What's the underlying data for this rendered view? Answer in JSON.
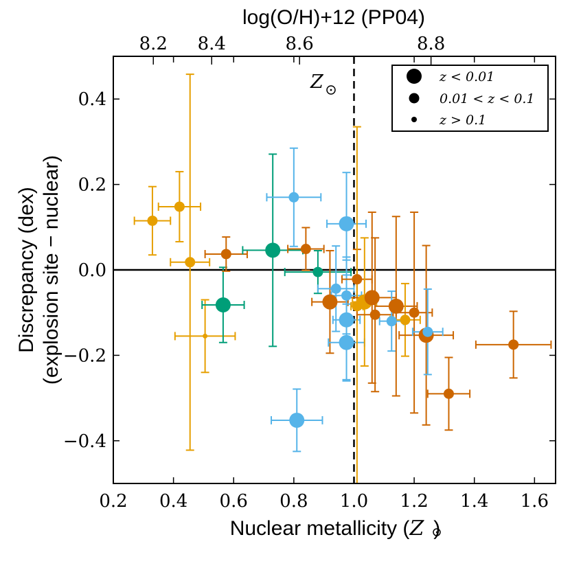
{
  "chart_data": {
    "type": "scatter",
    "title_top_axis": "log(O/H)+12 (PP04)",
    "xlabel_prefix": "Nuclear metallicity (",
    "xlabel_symbol": "Z",
    "xlabel_suffix": ")",
    "ylabel_line1": "Discrepancy (dex)",
    "ylabel_line2": "(explosion site − nuclear)",
    "xlim": [
      0.2,
      1.67
    ],
    "ylim": [
      -0.5,
      0.5
    ],
    "x_ticks": [
      0.2,
      0.4,
      0.6,
      0.8,
      1.0,
      1.2,
      1.4,
      1.6
    ],
    "x_tick_labels": [
      "0.2",
      "0.4",
      "0.6",
      "0.8",
      "1.0",
      "1.2",
      "1.4",
      "1.6"
    ],
    "y_ticks": [
      -0.4,
      -0.2,
      0.0,
      0.2,
      0.4
    ],
    "y_tick_labels": [
      "−0.4",
      "−0.2",
      "0.0",
      "0.2",
      "0.4"
    ],
    "top_ticks": [
      {
        "x": 0.333,
        "label": "8.2"
      },
      {
        "x": 0.527,
        "label": "8.4"
      },
      {
        "x": 0.819,
        "label": "8.6"
      },
      {
        "x": 1.256,
        "label": "8.8"
      }
    ],
    "hline_y": 0.0,
    "solar_line_x": 1.0,
    "solar_label": "Z",
    "colors": {
      "orange": "#e69f00",
      "vermillion": "#cc6600",
      "teal": "#009e78",
      "sky": "#56b4e9"
    },
    "legend": {
      "position": "top-right",
      "entries": [
        {
          "label": "z < 0.01",
          "size": "large"
        },
        {
          "label": "0.01 < z < 0.1",
          "size": "medium"
        },
        {
          "label": "z > 0.1",
          "size": "small"
        }
      ]
    },
    "points": [
      {
        "x": 0.33,
        "y": 0.115,
        "xerr": 0.06,
        "yerr": 0.08,
        "color": "orange",
        "size": "medium"
      },
      {
        "x": 0.42,
        "y": 0.148,
        "xerr": 0.07,
        "yerr": 0.082,
        "color": "orange",
        "size": "medium"
      },
      {
        "x": 0.455,
        "y": 0.018,
        "xerr": 0.065,
        "yerr": [
          0.44,
          0.44
        ],
        "color": "orange",
        "size": "medium"
      },
      {
        "x": 0.505,
        "y": -0.155,
        "xerr": 0.1,
        "yerr": 0.085,
        "color": "orange",
        "size": "small"
      },
      {
        "x": 0.565,
        "y": -0.082,
        "xerr": 0.07,
        "yerr": 0.088,
        "color": "teal",
        "size": "large"
      },
      {
        "x": 0.575,
        "y": 0.037,
        "xerr": 0.07,
        "yerr": 0.04,
        "color": "vermillion",
        "size": "medium"
      },
      {
        "x": 0.73,
        "y": 0.046,
        "xerr": 0.1,
        "yerr": 0.225,
        "color": "teal",
        "size": "large"
      },
      {
        "x": 0.8,
        "y": 0.17,
        "xerr": 0.09,
        "yerr": 0.115,
        "color": "sky",
        "size": "medium"
      },
      {
        "x": 0.81,
        "y": -0.352,
        "xerr": 0.085,
        "yerr": 0.073,
        "color": "sky",
        "size": "large"
      },
      {
        "x": 0.84,
        "y": 0.049,
        "xerr": 0.06,
        "yerr": 0.05,
        "color": "vermillion",
        "size": "medium"
      },
      {
        "x": 0.88,
        "y": -0.005,
        "xerr": 0.11,
        "yerr": 0.05,
        "color": "teal",
        "size": "medium"
      },
      {
        "x": 0.92,
        "y": -0.075,
        "xerr": 0.06,
        "yerr": 0.12,
        "color": "vermillion",
        "size": "large"
      },
      {
        "x": 0.94,
        "y": -0.044,
        "xerr": 0.06,
        "yerr": 0.1,
        "color": "sky",
        "size": "medium"
      },
      {
        "x": 0.975,
        "y": 0.108,
        "xerr": 0.065,
        "yerr": 0.12,
        "color": "sky",
        "size": "large"
      },
      {
        "x": 0.975,
        "y": -0.06,
        "xerr": 0.05,
        "yerr": 0.09,
        "color": "sky",
        "size": "medium"
      },
      {
        "x": 0.975,
        "y": -0.117,
        "xerr": 0.045,
        "yerr": 0.14,
        "color": "sky",
        "size": "large"
      },
      {
        "x": 0.975,
        "y": -0.17,
        "xerr": 0.06,
        "yerr": 0.09,
        "color": "sky",
        "size": "large"
      },
      {
        "x": 1.01,
        "y": -0.022,
        "xerr": 0.05,
        "yerr": 0.07,
        "color": "vermillion",
        "size": "medium"
      },
      {
        "x": 1.01,
        "y": -0.085,
        "xerr": 0.02,
        "yerr": [
          0.42,
          0.42
        ],
        "color": "orange",
        "size": "medium"
      },
      {
        "x": 1.035,
        "y": -0.075,
        "xerr": 0.04,
        "yerr": 0.15,
        "color": "orange",
        "size": "large"
      },
      {
        "x": 1.06,
        "y": -0.065,
        "xerr": 0.08,
        "yerr": 0.2,
        "color": "vermillion",
        "size": "large"
      },
      {
        "x": 1.07,
        "y": -0.105,
        "xerr": 0.06,
        "yerr": 0.18,
        "color": "vermillion",
        "size": "medium"
      },
      {
        "x": 1.125,
        "y": -0.12,
        "xerr": 0.04,
        "yerr": 0.07,
        "color": "sky",
        "size": "medium"
      },
      {
        "x": 1.14,
        "y": -0.085,
        "xerr": 0.07,
        "yerr": 0.21,
        "color": "vermillion",
        "size": "large"
      },
      {
        "x": 1.17,
        "y": -0.117,
        "xerr": 0.05,
        "yerr": 0.085,
        "color": "orange",
        "size": "medium"
      },
      {
        "x": 1.2,
        "y": -0.1,
        "xerr": 0.06,
        "yerr": 0.235,
        "color": "vermillion",
        "size": "medium"
      },
      {
        "x": 1.24,
        "y": -0.153,
        "xerr": 0.09,
        "yerr": 0.21,
        "color": "vermillion",
        "size": "large"
      },
      {
        "x": 1.245,
        "y": -0.145,
        "xerr": 0.05,
        "yerr": 0.1,
        "color": "sky",
        "size": "medium"
      },
      {
        "x": 1.315,
        "y": -0.29,
        "xerr": 0.07,
        "yerr": 0.085,
        "color": "vermillion",
        "size": "medium"
      },
      {
        "x": 1.53,
        "y": -0.175,
        "xerr": 0.125,
        "yerr": 0.078,
        "color": "vermillion",
        "size": "medium"
      }
    ]
  }
}
